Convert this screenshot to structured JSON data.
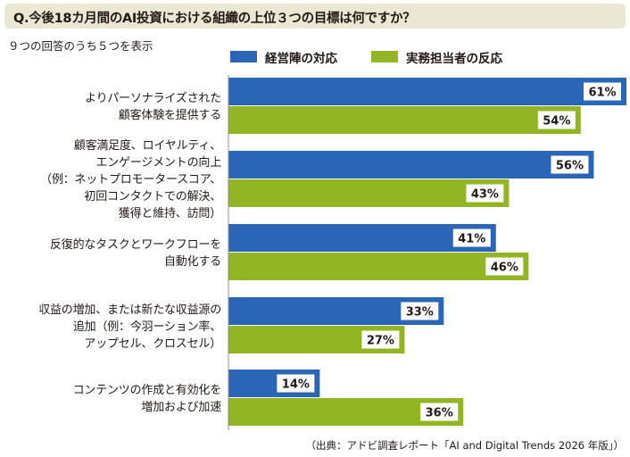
{
  "title": "Q.今後18カ月間のAI投資における組織の上位３つの目標は何ですか？",
  "subtitle": "９つの回答のうち５つを表示",
  "source": "（出典：アドビ調査レポート「AI and Digital Trends 2026 年版」）",
  "colors": {
    "series_exec": "#2b66b6",
    "series_practitioner": "#93b524",
    "title_bg": "#eae7d3"
  },
  "chart_data": {
    "type": "bar",
    "orientation": "horizontal",
    "unit": "%",
    "categories": [
      "よりパーソナライズされた\n顧客体験を提供する",
      "顧客満足度、ロイヤルティ、\nエンゲージメントの向上\n（例：ネットプロモータースコア、\n初回コンタクトでの解決、\n獲得と維持、訪問）",
      "反復的なタスクとワークフローを\n自動化する",
      "収益の増加、または新たな収益源の\n追加（例：今羽ーション率、\nアップセル、クロスセル）",
      "コンテンツの作成と有効化を\n増加および加速"
    ],
    "series": [
      {
        "name": "経営陣の対応",
        "values": [
          61,
          56,
          41,
          33,
          14
        ],
        "labels": [
          "61%",
          "56%",
          "41%",
          "33%",
          "14%"
        ]
      },
      {
        "name": "実務担当者の反応",
        "values": [
          54,
          43,
          46,
          27,
          36
        ],
        "labels": [
          "54%",
          "43%",
          "46%",
          "27%",
          "36%"
        ]
      }
    ],
    "xlim": [
      0,
      61
    ],
    "legend_position": "top",
    "grid": false
  }
}
